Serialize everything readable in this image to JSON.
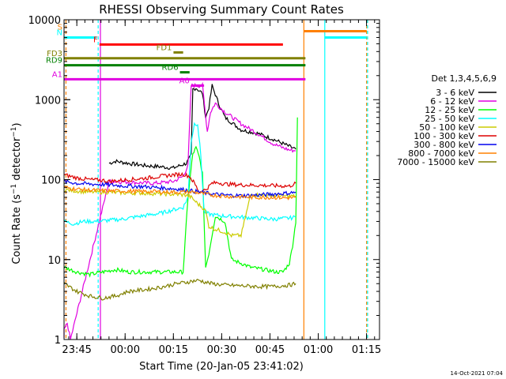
{
  "chart_data": {
    "type": "line",
    "title": "RHESSI Observing Summary Count Rates",
    "xlabel": "Start Time (20-Jan-05 23:41:02)",
    "ylabel": "Count Rate (s⁻¹ detector⁻¹)",
    "ylabel_parts": {
      "main": "Count Rate (s",
      "sup1": "−1",
      "mid": " detector",
      "sup2": "−1",
      "end": ")"
    },
    "x_unit": "minutes since 23:41:02",
    "xlim": [
      0,
      98
    ],
    "ylim": [
      1,
      10000
    ],
    "yscale": "log",
    "x_ticks": [
      {
        "x": 3.97,
        "label": "23:45"
      },
      {
        "x": 18.97,
        "label": "00:00"
      },
      {
        "x": 33.97,
        "label": "00:15"
      },
      {
        "x": 48.97,
        "label": "00:30"
      },
      {
        "x": 63.97,
        "label": "00:45"
      },
      {
        "x": 78.97,
        "label": "01:00"
      },
      {
        "x": 93.97,
        "label": "01:15"
      }
    ],
    "y_ticks": [
      {
        "y": 1,
        "label": "1"
      },
      {
        "y": 10,
        "label": "10"
      },
      {
        "y": 100,
        "label": "100"
      },
      {
        "y": 1000,
        "label": "1000"
      },
      {
        "y": 10000,
        "label": "10000"
      }
    ],
    "legend": {
      "title": "Det 1,3,4,5,6,9",
      "position": "right"
    },
    "series": [
      {
        "name": "3 - 6 keV",
        "color": "#000000",
        "points": [
          [
            14,
            160
          ],
          [
            16,
            170
          ],
          [
            20,
            160
          ],
          [
            25,
            150
          ],
          [
            30,
            145
          ],
          [
            34,
            140
          ],
          [
            36,
            150
          ],
          [
            38,
            160
          ],
          [
            39.5,
            200
          ],
          [
            40,
            1350
          ],
          [
            41,
            1400
          ],
          [
            43,
            1200
          ],
          [
            44,
            600
          ],
          [
            45,
            800
          ],
          [
            46,
            1500
          ],
          [
            48,
            900
          ],
          [
            50,
            600
          ],
          [
            55,
            420
          ],
          [
            60,
            380
          ],
          [
            65,
            320
          ],
          [
            70,
            260
          ],
          [
            72,
            240
          ]
        ]
      },
      {
        "name": "6 - 12 keV",
        "color": "#e000e0",
        "points": [
          [
            0,
            1
          ],
          [
            0,
            1.3
          ],
          [
            1,
            1.6
          ],
          [
            2,
            1
          ],
          [
            14,
            95
          ],
          [
            16,
            95
          ],
          [
            22,
            92
          ],
          [
            28,
            90
          ],
          [
            34,
            95
          ],
          [
            37,
            110
          ],
          [
            38.5,
            150
          ],
          [
            39.5,
            1500
          ],
          [
            41,
            1500
          ],
          [
            43,
            1500
          ],
          [
            44.5,
            400
          ],
          [
            45.5,
            700
          ],
          [
            47,
            900
          ],
          [
            50,
            700
          ],
          [
            55,
            500
          ],
          [
            60,
            380
          ],
          [
            65,
            280
          ],
          [
            68,
            250
          ],
          [
            70,
            235
          ],
          [
            72,
            230
          ]
        ]
      },
      {
        "name": "12 - 25 keV",
        "color": "#00ff00",
        "points": [
          [
            0,
            8
          ],
          [
            4,
            7
          ],
          [
            8,
            6.5
          ],
          [
            12,
            7
          ],
          [
            16,
            7.5
          ],
          [
            20,
            7
          ],
          [
            25,
            7
          ],
          [
            30,
            7
          ],
          [
            35,
            7
          ],
          [
            37,
            7
          ],
          [
            38.5,
            60
          ],
          [
            40,
            210
          ],
          [
            41,
            250
          ],
          [
            42,
            190
          ],
          [
            43,
            120
          ],
          [
            44,
            8
          ],
          [
            45,
            12
          ],
          [
            47,
            35
          ],
          [
            50,
            30
          ],
          [
            52,
            10
          ],
          [
            55,
            9
          ],
          [
            58,
            8
          ],
          [
            62,
            7.5
          ],
          [
            66,
            7
          ],
          [
            68,
            7
          ],
          [
            70,
            9
          ],
          [
            71,
            15
          ],
          [
            72,
            30
          ],
          [
            72.5,
            600
          ]
        ]
      },
      {
        "name": "25 - 50 keV",
        "color": "#00ffff",
        "points": [
          [
            0,
            30
          ],
          [
            3,
            28
          ],
          [
            6,
            30
          ],
          [
            10,
            30
          ],
          [
            14,
            31
          ],
          [
            18,
            32
          ],
          [
            22,
            34
          ],
          [
            26,
            36
          ],
          [
            30,
            38
          ],
          [
            34,
            42
          ],
          [
            37,
            45
          ],
          [
            38.5,
            60
          ],
          [
            39.5,
            300
          ],
          [
            40.5,
            500
          ],
          [
            41.5,
            500
          ],
          [
            42.5,
            200
          ],
          [
            43.5,
            40
          ],
          [
            45,
            37
          ],
          [
            47,
            36
          ],
          [
            50,
            35
          ],
          [
            55,
            34
          ],
          [
            60,
            33
          ],
          [
            65,
            32
          ],
          [
            70,
            33
          ],
          [
            72,
            34
          ]
        ]
      },
      {
        "name": "50 - 100 keV",
        "color": "#cccc00",
        "points": [
          [
            0,
            75
          ],
          [
            4,
            72
          ],
          [
            8,
            70
          ],
          [
            12,
            70
          ],
          [
            16,
            69
          ],
          [
            20,
            68
          ],
          [
            24,
            68
          ],
          [
            28,
            67
          ],
          [
            32,
            66
          ],
          [
            36,
            65
          ],
          [
            38,
            64
          ],
          [
            39.5,
            60
          ],
          [
            40.5,
            55
          ],
          [
            41.5,
            50
          ],
          [
            43,
            45
          ],
          [
            44,
            40
          ],
          [
            45,
            26
          ],
          [
            47,
            24
          ],
          [
            50,
            22
          ],
          [
            52,
            20
          ],
          [
            55,
            20
          ],
          [
            58,
            65
          ],
          [
            62,
            64
          ],
          [
            66,
            63
          ],
          [
            70,
            62
          ],
          [
            72,
            62
          ]
        ]
      },
      {
        "name": "100 - 300 keV",
        "color": "#dd0000",
        "points": [
          [
            0,
            115
          ],
          [
            4,
            105
          ],
          [
            8,
            100
          ],
          [
            12,
            98
          ],
          [
            14,
            95
          ],
          [
            20,
            100
          ],
          [
            25,
            104
          ],
          [
            30,
            110
          ],
          [
            34,
            115
          ],
          [
            37,
            117
          ],
          [
            39,
            110
          ],
          [
            40.5,
            90
          ],
          [
            42,
            70
          ],
          [
            44,
            75
          ],
          [
            46,
            90
          ],
          [
            48,
            92
          ],
          [
            50,
            88
          ],
          [
            55,
            86
          ],
          [
            60,
            85
          ],
          [
            65,
            84
          ],
          [
            70,
            83
          ],
          [
            72,
            90
          ]
        ]
      },
      {
        "name": "300 - 800 keV",
        "color": "#0000ee",
        "points": [
          [
            0,
            95
          ],
          [
            4,
            90
          ],
          [
            8,
            88
          ],
          [
            12,
            87
          ],
          [
            16,
            85
          ],
          [
            20,
            83
          ],
          [
            24,
            82
          ],
          [
            28,
            80
          ],
          [
            32,
            78
          ],
          [
            36,
            76
          ],
          [
            38,
            74
          ],
          [
            40,
            72
          ],
          [
            42,
            70
          ],
          [
            44,
            68
          ],
          [
            46,
            66
          ],
          [
            48,
            65
          ],
          [
            50,
            64
          ],
          [
            55,
            63
          ],
          [
            60,
            64
          ],
          [
            65,
            66
          ],
          [
            70,
            68
          ],
          [
            72,
            70
          ]
        ]
      },
      {
        "name": "800 - 7000 keV",
        "color": "#ff8000",
        "points": [
          [
            0,
            80
          ],
          [
            4,
            76
          ],
          [
            8,
            74
          ],
          [
            12,
            73
          ],
          [
            16,
            72
          ],
          [
            20,
            72
          ],
          [
            24,
            71
          ],
          [
            28,
            71
          ],
          [
            32,
            70
          ],
          [
            36,
            70
          ],
          [
            38,
            70
          ],
          [
            40,
            70
          ],
          [
            42,
            68
          ],
          [
            44,
            66
          ],
          [
            46,
            64
          ],
          [
            48,
            63
          ],
          [
            50,
            62
          ],
          [
            55,
            61
          ],
          [
            60,
            60
          ],
          [
            65,
            60
          ],
          [
            70,
            59
          ],
          [
            72,
            60
          ]
        ]
      },
      {
        "name": "7000 - 15000 keV",
        "color": "#808000",
        "points": [
          [
            0,
            5
          ],
          [
            4,
            4
          ],
          [
            8,
            3.5
          ],
          [
            12,
            3.3
          ],
          [
            16,
            3.5
          ],
          [
            20,
            4
          ],
          [
            25,
            4.2
          ],
          [
            30,
            4.5
          ],
          [
            35,
            5
          ],
          [
            38,
            5.2
          ],
          [
            40,
            5.4
          ],
          [
            42,
            5.5
          ],
          [
            44,
            5.2
          ],
          [
            46,
            5
          ],
          [
            50,
            4.8
          ],
          [
            55,
            4.7
          ],
          [
            60,
            4.6
          ],
          [
            65,
            4.6
          ],
          [
            70,
            4.8
          ],
          [
            72,
            5
          ]
        ]
      }
    ],
    "state_bars": [
      {
        "label": "S",
        "color": "#ff8000",
        "x_start": 0,
        "x_end": 0,
        "y": 7000
      },
      {
        "label": "N",
        "color": "#00ffff",
        "x_start": 0,
        "x_end": 10,
        "y": 6000
      },
      {
        "label": "F",
        "color": "#ff0000",
        "x_start": 11,
        "x_end": 68,
        "y": 4900
      },
      {
        "label": "FD1",
        "color": "#808000",
        "x_start": 34,
        "x_end": 37,
        "y": 3900
      },
      {
        "label": "FD3",
        "color": "#808000",
        "x_start": 0,
        "x_end": 75,
        "y": 3300
      },
      {
        "label": "RD9",
        "color": "#008000",
        "x_start": 0,
        "x_end": 75,
        "y": 2700
      },
      {
        "label": "RD6",
        "color": "#008000",
        "x_start": 36,
        "x_end": 39,
        "y": 2200
      },
      {
        "label": "A1",
        "color": "#e000e0",
        "x_start": 0,
        "x_end": 75,
        "y": 1800
      },
      {
        "label": "A0",
        "color": "#e000e0",
        "x_start": 39.5,
        "x_end": 43.5,
        "y": 1500
      },
      {
        "label": "",
        "color": "#ff8000",
        "x_start": 74.5,
        "x_end": 94,
        "y": 7200
      },
      {
        "label": "",
        "color": "#00ffff",
        "x_start": 81,
        "x_end": 94,
        "y": 6000
      }
    ],
    "vlines": [
      {
        "x": 0.6,
        "color": "#ff8000",
        "dashed": true
      },
      {
        "x": 10.6,
        "color": "#00ffff",
        "dashed": true
      },
      {
        "x": 11.3,
        "color": "#e000e0",
        "dashed": false
      },
      {
        "x": 74.5,
        "color": "#ff8000",
        "dashed": false
      },
      {
        "x": 81.0,
        "color": "#00ffff",
        "dashed": false
      },
      {
        "x": 94.0,
        "color": "#ff8000",
        "dashed": true
      },
      {
        "x": 94.3,
        "color": "#00ffff",
        "dashed": true
      }
    ]
  },
  "timestamp": "14-Oct-2021 07:04"
}
